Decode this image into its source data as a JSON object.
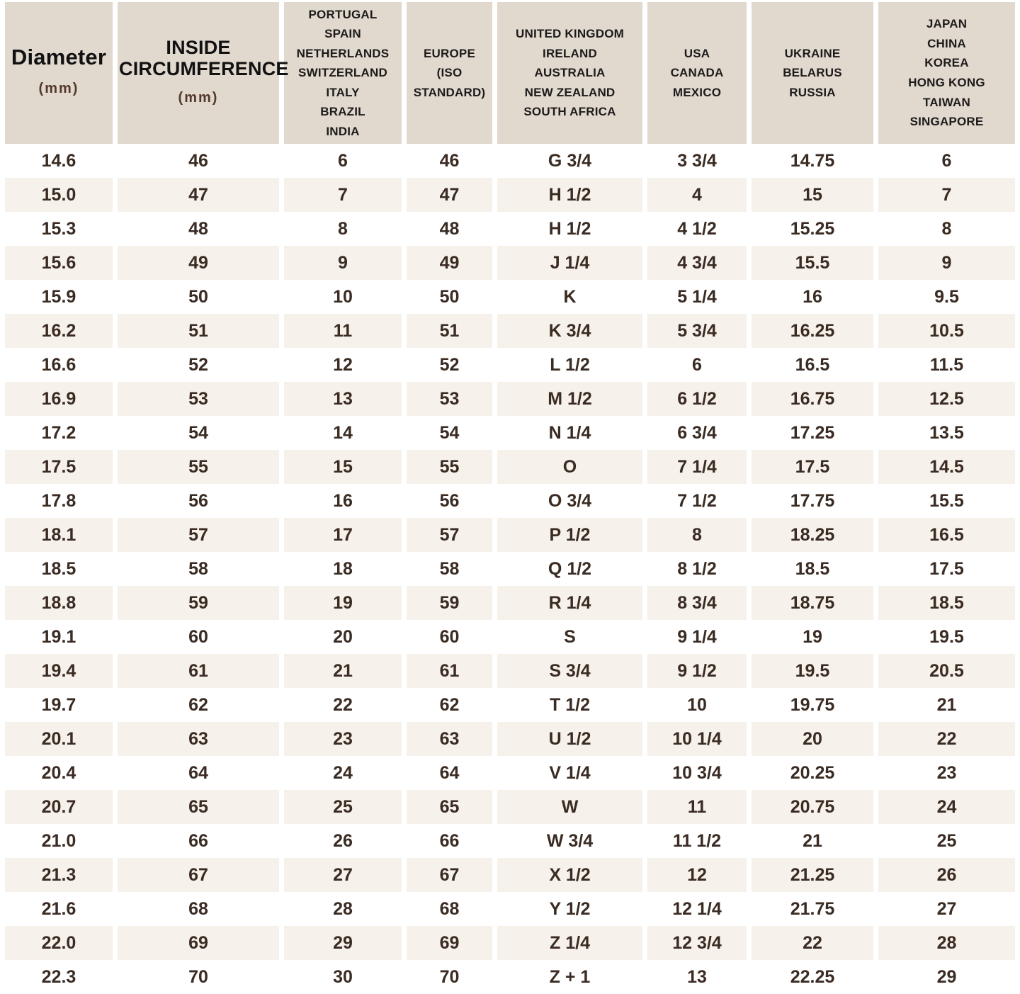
{
  "colors": {
    "header_bg": "#e1d8ce",
    "stripe_row_bg": "#f6f1ea",
    "plain_row_bg": "#ffffff",
    "cell_text": "#3a2b23",
    "header_text": "#1c1b1a",
    "unit_text": "#53382b"
  },
  "chart_data": {
    "type": "table",
    "columns": [
      {
        "title": "Diameter",
        "unit": "(mm)",
        "variant": "diameter"
      },
      {
        "title": "INSIDE CIRCUMFERENCE",
        "unit": "(mm)",
        "variant": "circumference"
      },
      {
        "header_lines": [
          "PORTUGAL",
          "SPAIN",
          "NETHERLANDS",
          "SWITZERLAND",
          "ITALY",
          "BRAZIL",
          "INDIA"
        ]
      },
      {
        "header_lines": [
          "EUROPE",
          "(ISO",
          "STANDARD)"
        ]
      },
      {
        "header_lines": [
          "UNITED KINGDOM",
          "IRELAND",
          "AUSTRALIA",
          "NEW ZEALAND",
          "SOUTH AFRICA"
        ]
      },
      {
        "header_lines": [
          "USA",
          "CANADA",
          "MEXICO"
        ]
      },
      {
        "header_lines": [
          "UKRAINE",
          "BELARUS",
          "RUSSIA"
        ]
      },
      {
        "header_lines": [
          "JAPAN",
          "CHINA",
          "KOREA",
          "HONG KONG",
          "TAIWAN",
          "SINGAPORE"
        ]
      }
    ],
    "rows": [
      [
        "14.6",
        "46",
        "6",
        "46",
        "G 3/4",
        "3 3/4",
        "14.75",
        "6"
      ],
      [
        "15.0",
        "47",
        "7",
        "47",
        "H 1/2",
        "4",
        "15",
        "7"
      ],
      [
        "15.3",
        "48",
        "8",
        "48",
        "H 1/2",
        "4 1/2",
        "15.25",
        "8"
      ],
      [
        "15.6",
        "49",
        "9",
        "49",
        "J 1/4",
        "4 3/4",
        "15.5",
        "9"
      ],
      [
        "15.9",
        "50",
        "10",
        "50",
        "K",
        "5 1/4",
        "16",
        "9.5"
      ],
      [
        "16.2",
        "51",
        "11",
        "51",
        "K 3/4",
        "5 3/4",
        "16.25",
        "10.5"
      ],
      [
        "16.6",
        "52",
        "12",
        "52",
        "L 1/2",
        "6",
        "16.5",
        "11.5"
      ],
      [
        "16.9",
        "53",
        "13",
        "53",
        "M 1/2",
        "6 1/2",
        "16.75",
        "12.5"
      ],
      [
        "17.2",
        "54",
        "14",
        "54",
        "N 1/4",
        "6 3/4",
        "17.25",
        "13.5"
      ],
      [
        "17.5",
        "55",
        "15",
        "55",
        "O",
        "7 1/4",
        "17.5",
        "14.5"
      ],
      [
        "17.8",
        "56",
        "16",
        "56",
        "O 3/4",
        "7 1/2",
        "17.75",
        "15.5"
      ],
      [
        "18.1",
        "57",
        "17",
        "57",
        "P 1/2",
        "8",
        "18.25",
        "16.5"
      ],
      [
        "18.5",
        "58",
        "18",
        "58",
        "Q 1/2",
        "8 1/2",
        "18.5",
        "17.5"
      ],
      [
        "18.8",
        "59",
        "19",
        "59",
        "R 1/4",
        "8 3/4",
        "18.75",
        "18.5"
      ],
      [
        "19.1",
        "60",
        "20",
        "60",
        "S",
        "9 1/4",
        "19",
        "19.5"
      ],
      [
        "19.4",
        "61",
        "21",
        "61",
        "S 3/4",
        "9 1/2",
        "19.5",
        "20.5"
      ],
      [
        "19.7",
        "62",
        "22",
        "62",
        "T 1/2",
        "10",
        "19.75",
        "21"
      ],
      [
        "20.1",
        "63",
        "23",
        "63",
        "U 1/2",
        "10 1/4",
        "20",
        "22"
      ],
      [
        "20.4",
        "64",
        "24",
        "64",
        "V 1/4",
        "10 3/4",
        "20.25",
        "23"
      ],
      [
        "20.7",
        "65",
        "25",
        "65",
        "W",
        "11",
        "20.75",
        "24"
      ],
      [
        "21.0",
        "66",
        "26",
        "66",
        "W 3/4",
        "11 1/2",
        "21",
        "25"
      ],
      [
        "21.3",
        "67",
        "27",
        "67",
        "X 1/2",
        "12",
        "21.25",
        "26"
      ],
      [
        "21.6",
        "68",
        "28",
        "68",
        "Y 1/2",
        "12 1/4",
        "21.75",
        "27"
      ],
      [
        "22.0",
        "69",
        "29",
        "69",
        "Z 1/4",
        "12 3/4",
        "22",
        "28"
      ],
      [
        "22.3",
        "70",
        "30",
        "70",
        "Z + 1",
        "13",
        "22.25",
        "29"
      ]
    ]
  }
}
